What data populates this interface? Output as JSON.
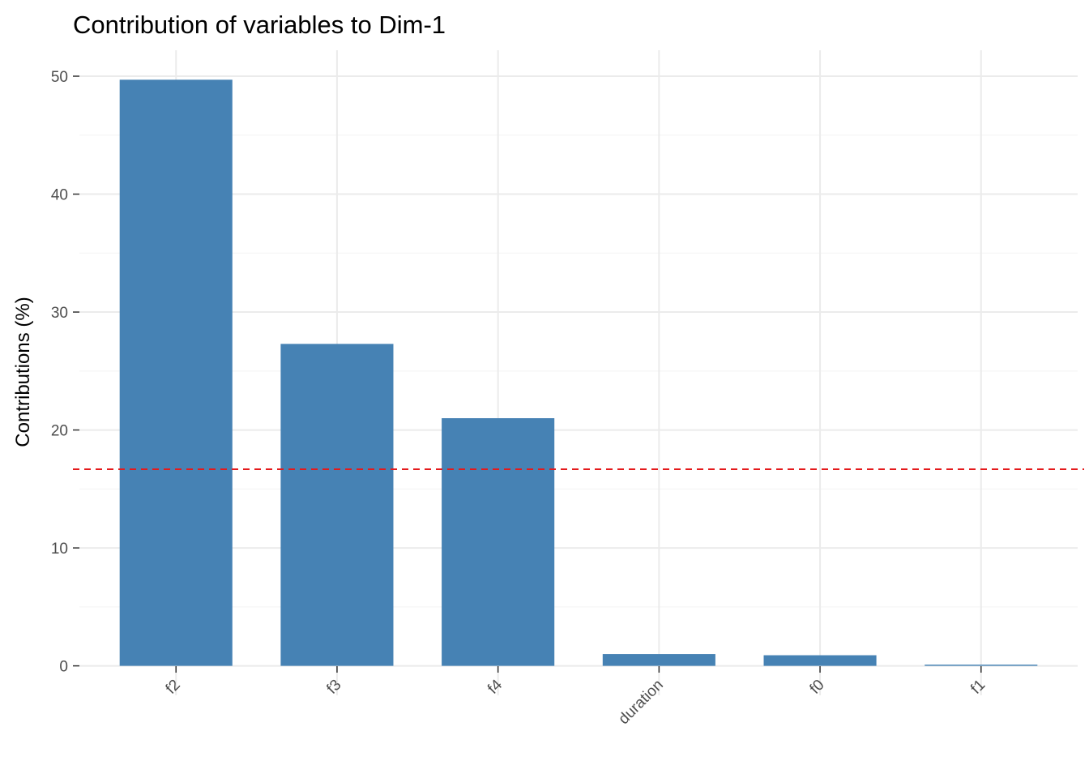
{
  "chart_data": {
    "type": "bar",
    "title": "Contribution of variables to Dim-1",
    "xlabel": "",
    "ylabel": "Contributions (%)",
    "categories": [
      "f2",
      "f3",
      "f4",
      "duration",
      "f0",
      "f1"
    ],
    "values": [
      49.7,
      27.3,
      21.0,
      1.0,
      0.9,
      0.1
    ],
    "yticks": [
      0,
      10,
      20,
      30,
      40,
      50
    ],
    "ylim": [
      -2.5,
      52.2
    ],
    "reference_line": 16.67,
    "grid": true,
    "colors": {
      "bar": "#4682B4",
      "reference_line": "#E41A1C"
    }
  }
}
